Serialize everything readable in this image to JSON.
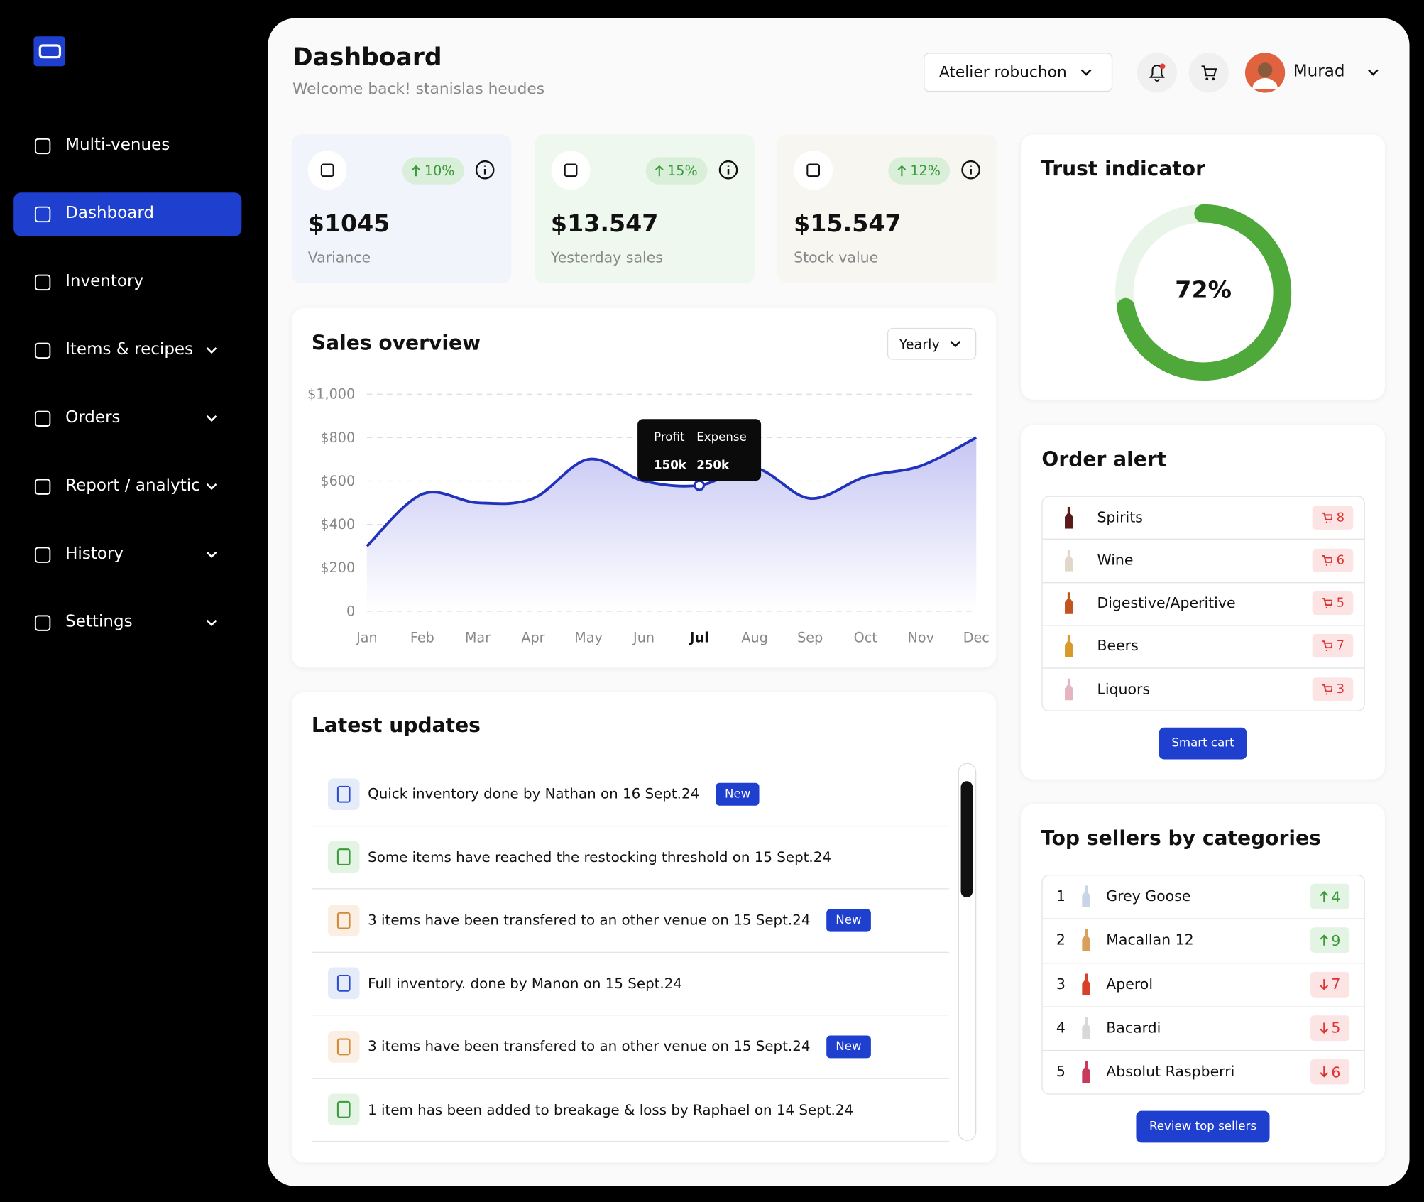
{
  "sidebar": {
    "nav": [
      {
        "label": "Multi-venues",
        "expandable": false,
        "active": false
      },
      {
        "label": "Dashboard",
        "expandable": false,
        "active": true
      },
      {
        "label": "Inventory",
        "expandable": false,
        "active": false
      },
      {
        "label": "Items & recipes",
        "expandable": true,
        "active": false
      },
      {
        "label": "Orders",
        "expandable": true,
        "active": false
      },
      {
        "label": "Report / analytic",
        "expandable": true,
        "active": false
      },
      {
        "label": "History",
        "expandable": true,
        "active": false
      },
      {
        "label": "Settings",
        "expandable": true,
        "active": false
      }
    ]
  },
  "header": {
    "title": "Dashboard",
    "subtitle": "Welcome back! stanislas heudes",
    "venue": "Atelier robuchon",
    "user": "Murad"
  },
  "stats": [
    {
      "change": "10%",
      "value": "$1045",
      "label": "Variance"
    },
    {
      "change": "15%",
      "value": "$13.547",
      "label": "Yesterday sales"
    },
    {
      "change": "12%",
      "value": "$15.547",
      "label": "Stock value"
    }
  ],
  "chart_data": {
    "type": "line",
    "title": "Sales overview",
    "period": "Yearly",
    "categories": [
      "Jan",
      "Feb",
      "Mar",
      "Apr",
      "May",
      "Jun",
      "Jul",
      "Aug",
      "Sep",
      "Oct",
      "Nov",
      "Dec"
    ],
    "values": [
      300,
      540,
      500,
      520,
      700,
      600,
      580,
      660,
      520,
      620,
      670,
      800
    ],
    "color": "#2233bb",
    "ylim": [
      0,
      1000
    ],
    "yticks": [
      0,
      {
        "value": 200,
        "label": "$200"
      },
      {
        "value": 400,
        "label": "$400"
      },
      {
        "value": 600,
        "label": "$600"
      },
      {
        "value": 800,
        "label": "$800"
      },
      {
        "value": 1000,
        "label": "$1,000"
      }
    ],
    "grid": true,
    "highlight_index": 6,
    "tooltip": {
      "labels": [
        "Profit",
        "Expense"
      ],
      "values": [
        "150k",
        "250k"
      ]
    }
  },
  "trust": {
    "title": "Trust indicator",
    "value": 72,
    "value_label": "72%",
    "color": "#4ea83a"
  },
  "order_alert": {
    "title": "Order alert",
    "items": [
      {
        "name": "Spirits",
        "count": 8
      },
      {
        "name": "Wine",
        "count": 6
      },
      {
        "name": "Digestive/Aperitive",
        "count": 5
      },
      {
        "name": "Beers",
        "count": 7
      },
      {
        "name": "Liquors",
        "count": 3
      }
    ],
    "button": "Smart cart"
  },
  "updates": {
    "title": "Latest updates",
    "badge": "New",
    "items": [
      {
        "text": "Quick inventory done by Nathan on 16 Sept.24",
        "icon": "clipboard",
        "new": true
      },
      {
        "text": "Some items have reached the restocking threshold on 15 Sept.24",
        "icon": "cart",
        "new": false
      },
      {
        "text": "3 items have been transfered to an other venue on 15 Sept.24",
        "icon": "chart",
        "new": true
      },
      {
        "text": "Full inventory. done by Manon on 15 Sept.24",
        "icon": "clipboard",
        "new": false
      },
      {
        "text": "3 items have been transfered to an other venue on 15 Sept.24",
        "icon": "chart",
        "new": true
      },
      {
        "text": "1 item has been added to breakage & loss by Raphael on 14 Sept.24",
        "icon": "cart",
        "new": false
      }
    ]
  },
  "top_sellers": {
    "title": "Top sellers by categories",
    "items": [
      {
        "rank": 1,
        "name": "Grey Goose",
        "change": 4,
        "trend": "up"
      },
      {
        "rank": 2,
        "name": "Macallan 12",
        "change": 9,
        "trend": "up"
      },
      {
        "rank": 3,
        "name": "Aperol",
        "change": 7,
        "trend": "down"
      },
      {
        "rank": 4,
        "name": "Bacardi",
        "change": 5,
        "trend": "down"
      },
      {
        "rank": 5,
        "name": "Absolut Raspberri",
        "change": 6,
        "trend": "down"
      }
    ],
    "button": "Review top sellers"
  }
}
